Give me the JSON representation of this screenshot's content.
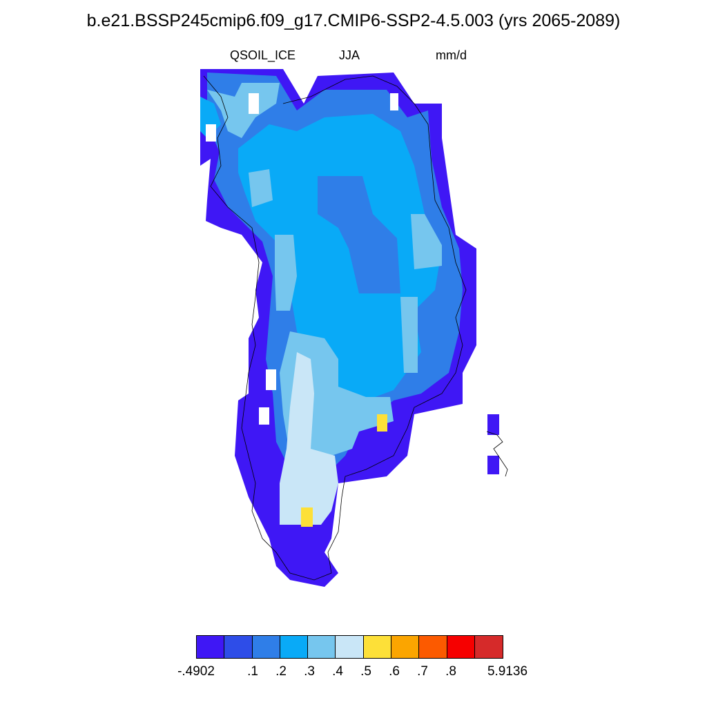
{
  "title": "b.e21.BSSP245cmip6.f09_g17.CMIP6-SSP2-4.5.003 (yrs 2065-2089)",
  "variable": "QSOIL_ICE",
  "season": "JJA",
  "units": "mm/d",
  "colorbar": {
    "colors": [
      "#3f17f5",
      "#2e4de8",
      "#2f7ee8",
      "#09aaf7",
      "#76c6ee",
      "#c9e6f7",
      "#fde038",
      "#fba500",
      "#fc5a00",
      "#f60000",
      "#d62a2a"
    ],
    "labels": [
      "-.4902",
      ".1",
      ".2",
      ".3",
      ".4",
      ".5",
      ".6",
      ".7",
      ".8",
      "5.9136"
    ]
  }
}
